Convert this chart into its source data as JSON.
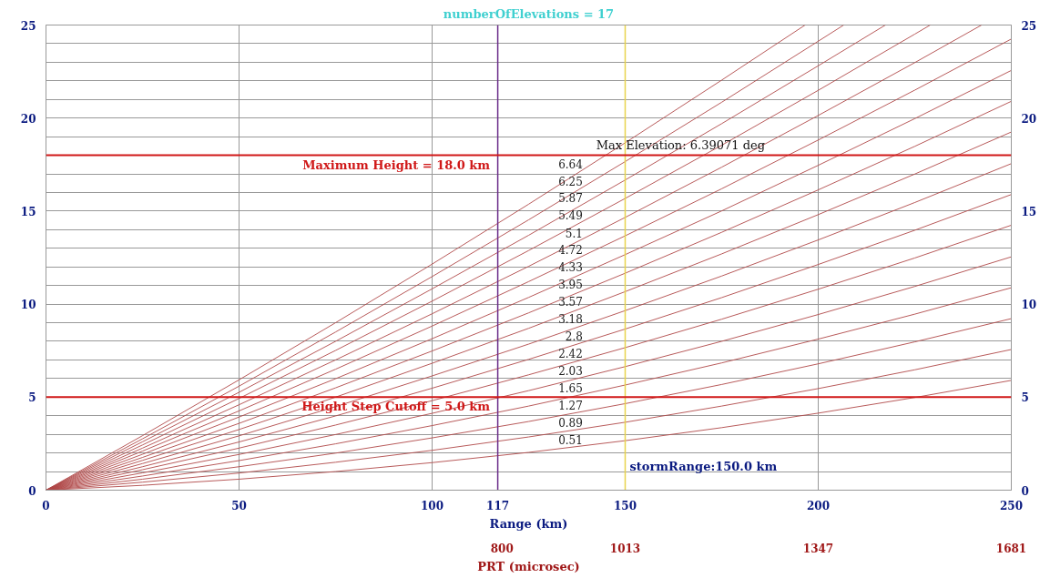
{
  "chart_data": {
    "type": "line",
    "title": "numberOfElevations = 17",
    "xlabel": "Range (km)",
    "x2label": "PRT (microsec)",
    "annotations": [
      "Max Elevation: 6.39071 deg"
    ],
    "xlim": [
      0,
      250
    ],
    "xticks": [
      0,
      50,
      100,
      117,
      150,
      200,
      250
    ],
    "x2lim": [
      11,
      1681
    ],
    "x2ticks": [
      800,
      1013,
      1347,
      1681
    ],
    "ylim": [
      0,
      25
    ],
    "yticks": [
      0,
      {
        "value": 1,
        "label": null
      },
      {
        "value": 2,
        "label": null
      },
      {
        "value": 3,
        "label": null
      },
      {
        "value": 4,
        "label": null
      },
      5,
      {
        "value": 6,
        "label": null
      },
      {
        "value": 7,
        "label": null
      },
      {
        "value": 8,
        "label": null
      },
      {
        "value": 9,
        "label": null
      },
      10,
      {
        "value": 11,
        "label": null
      },
      {
        "value": 12,
        "label": null
      },
      {
        "value": 13,
        "label": null
      },
      {
        "value": 14,
        "label": null
      },
      15,
      {
        "value": 16,
        "label": null
      },
      {
        "value": 17,
        "label": null
      },
      {
        "value": 19,
        "label": null
      },
      20,
      {
        "value": 21,
        "label": null
      },
      {
        "value": 22,
        "label": null
      },
      {
        "value": 23,
        "label": null
      },
      {
        "value": 24,
        "label": null
      },
      25
    ],
    "y2lim": [
      0,
      25
    ],
    "y2ticks": [
      0,
      5,
      10,
      15,
      20,
      25
    ],
    "grid": true,
    "legend": false,
    "ref_lines": [
      {
        "axis": "x",
        "value": 117,
        "label": null,
        "color": "#6a2c8a"
      },
      {
        "axis": "x",
        "value": 150,
        "label": "stormRange:150.0 km",
        "color": "#e8d44d"
      },
      {
        "axis": "y",
        "value": 18,
        "label": "Maximum Height = 18.0 km",
        "color": "#d01818"
      },
      {
        "axis": "y",
        "value": 5,
        "label": "Height Step Cutoff = 5.0 km",
        "color": "#d01818"
      }
    ],
    "series": [
      {
        "name": "0.51",
        "color": "#b04848",
        "x": [
          0,
          25,
          50,
          75,
          100,
          125,
          150,
          175,
          200,
          225,
          250
        ],
        "values": [
          0,
          0.26,
          0.59,
          1.0,
          1.48,
          2.03,
          2.66,
          3.36,
          4.14,
          4.98,
          5.9
        ]
      },
      {
        "name": "0.89",
        "color": "#b04848",
        "x": [
          0,
          25,
          50,
          75,
          100,
          125,
          150,
          175,
          200,
          225,
          250
        ],
        "values": [
          0,
          0.43,
          0.92,
          1.5,
          2.14,
          2.86,
          3.65,
          4.52,
          5.46,
          6.47,
          7.56
        ]
      },
      {
        "name": "1.27",
        "color": "#b04848",
        "x": [
          0,
          25,
          50,
          75,
          100,
          125,
          150,
          175,
          200,
          225,
          250
        ],
        "values": [
          0,
          0.59,
          1.26,
          1.99,
          2.81,
          3.69,
          4.65,
          5.68,
          6.79,
          7.97,
          9.22
        ]
      },
      {
        "name": "1.65",
        "color": "#b04848",
        "x": [
          0,
          25,
          50,
          75,
          100,
          125,
          150,
          175,
          200,
          225,
          250
        ],
        "values": [
          0,
          0.76,
          1.59,
          2.49,
          3.47,
          4.52,
          5.65,
          6.84,
          8.12,
          9.46,
          10.88
        ]
      },
      {
        "name": "2.03",
        "color": "#b04848",
        "x": [
          0,
          25,
          50,
          75,
          100,
          125,
          150,
          175,
          200,
          225,
          250
        ],
        "values": [
          0,
          0.93,
          1.92,
          2.99,
          4.13,
          5.35,
          6.64,
          8.0,
          9.44,
          10.95,
          12.54
        ]
      },
      {
        "name": "2.42",
        "color": "#b04848",
        "x": [
          0,
          25,
          50,
          75,
          100,
          125,
          150,
          175,
          200,
          225,
          250
        ],
        "values": [
          0,
          1.1,
          2.26,
          3.5,
          4.81,
          6.2,
          7.66,
          9.19,
          10.8,
          12.48,
          14.24
        ]
      },
      {
        "name": "2.8",
        "color": "#b04848",
        "x": [
          0,
          25,
          50,
          75,
          100,
          125,
          150,
          175,
          200,
          225,
          250
        ],
        "values": [
          0,
          1.26,
          2.59,
          3.99,
          5.48,
          7.03,
          8.66,
          10.35,
          12.13,
          13.97,
          15.89
        ]
      },
      {
        "name": "3.18",
        "color": "#b04848",
        "x": [
          0,
          25,
          50,
          75,
          100,
          125,
          150,
          175,
          200,
          225,
          250
        ],
        "values": [
          0,
          1.43,
          2.92,
          4.49,
          6.14,
          7.85,
          9.65,
          11.51,
          13.45,
          15.46,
          17.55
        ]
      },
      {
        "name": "3.57",
        "color": "#b04848",
        "x": [
          0,
          25,
          50,
          75,
          100,
          125,
          150,
          175,
          200,
          225,
          250
        ],
        "values": [
          0,
          1.6,
          3.26,
          5.0,
          6.82,
          8.7,
          10.67,
          12.7,
          14.81,
          16.99,
          19.25
        ]
      },
      {
        "name": "3.95",
        "color": "#b04848",
        "x": [
          0,
          25,
          50,
          75,
          100,
          125,
          150,
          175,
          200,
          225,
          250
        ],
        "values": [
          0,
          1.76,
          3.59,
          5.5,
          7.48,
          9.53,
          11.66,
          13.86,
          16.14,
          18.48,
          20.9
        ]
      },
      {
        "name": "4.33",
        "color": "#b04848",
        "x": [
          0,
          25,
          50,
          75,
          100,
          125,
          150,
          175,
          200,
          225,
          250
        ],
        "values": [
          0,
          1.93,
          3.93,
          5.99,
          8.14,
          10.36,
          12.66,
          15.01,
          17.46,
          19.97,
          22.56
        ]
      },
      {
        "name": "4.72",
        "color": "#b04848",
        "x": [
          0,
          25,
          50,
          75,
          100,
          125,
          150,
          175,
          200,
          225,
          250
        ],
        "values": [
          0,
          2.1,
          4.26,
          6.5,
          8.82,
          11.21,
          13.67,
          16.2,
          18.82,
          21.5,
          24.25
        ]
      },
      {
        "name": "5.1",
        "color": "#b04848",
        "x": [
          0,
          25,
          50,
          75,
          100,
          125,
          150,
          175,
          200,
          225,
          242.3
        ],
        "values": [
          0,
          2.26,
          4.59,
          7.0,
          9.48,
          12.03,
          14.66,
          17.36,
          20.14,
          22.98,
          25
        ]
      },
      {
        "name": "5.49",
        "color": "#b04848",
        "x": [
          0,
          25,
          50,
          75,
          100,
          125,
          150,
          175,
          200,
          225,
          229
        ],
        "values": [
          0,
          2.43,
          4.93,
          7.51,
          10.16,
          12.88,
          15.68,
          18.54,
          21.49,
          24.51,
          25
        ]
      },
      {
        "name": "5.87",
        "color": "#b04848",
        "x": [
          0,
          25,
          50,
          75,
          100,
          125,
          150,
          175,
          200,
          217.4
        ],
        "values": [
          0,
          2.6,
          5.26,
          8.0,
          10.82,
          13.7,
          16.67,
          19.7,
          22.81,
          25
        ]
      },
      {
        "name": "6.25",
        "color": "#b04848",
        "x": [
          0,
          25,
          50,
          75,
          100,
          125,
          150,
          175,
          200,
          206.6
        ],
        "values": [
          0,
          2.76,
          5.59,
          8.5,
          11.48,
          14.53,
          17.66,
          20.85,
          24.13,
          25
        ]
      },
      {
        "name": "6.64",
        "color": "#b04848",
        "x": [
          0,
          25,
          50,
          75,
          100,
          125,
          150,
          175,
          196.6
        ],
        "values": [
          0,
          2.93,
          5.93,
          9.0,
          12.15,
          15.37,
          18.67,
          22.04,
          25
        ]
      }
    ]
  }
}
